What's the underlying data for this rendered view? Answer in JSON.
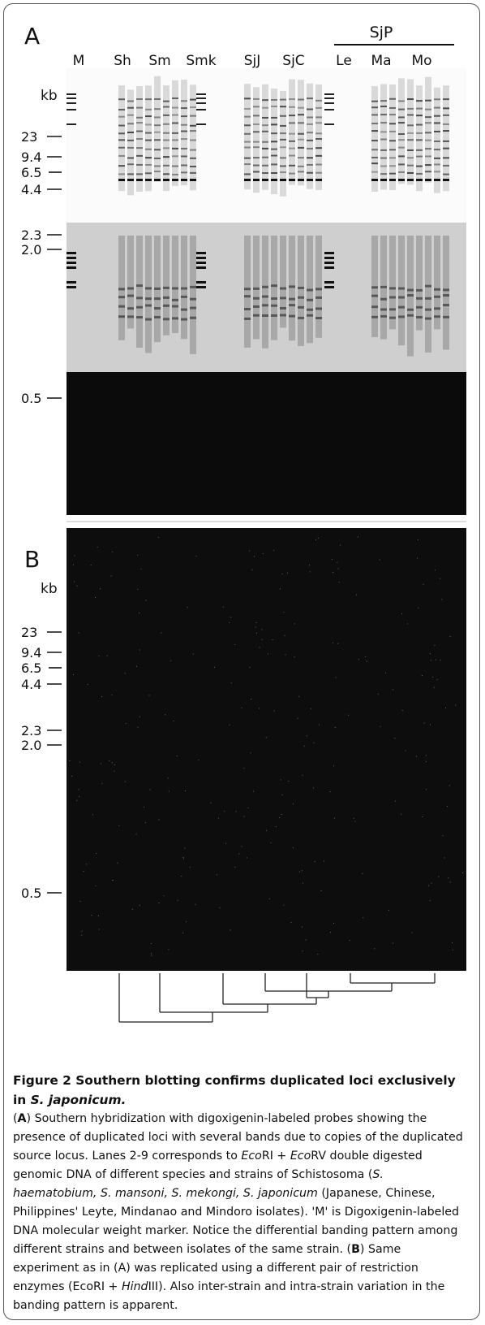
{
  "panel_a": {
    "label": "A",
    "group_label": "SjP",
    "lanes": [
      "M",
      "Sh",
      "Sm",
      "Smk",
      "SjJ",
      "SjC",
      "Le",
      "Ma",
      "Mo"
    ],
    "unit": "kb",
    "markers": [
      "23",
      "9.4",
      "6.5",
      "4.4",
      "2.3",
      "2.0",
      "0.5"
    ]
  },
  "panel_b": {
    "label": "B",
    "unit": "kb",
    "markers": [
      "23",
      "9.4",
      "6.5",
      "4.4",
      "2.3",
      "2.0",
      "0.5"
    ]
  },
  "caption": {
    "title": [
      {
        "text": "Figure 2 Southern blotting confirms duplicated loci exclusively in "
      },
      {
        "text": "S. japonicum.",
        "style": "italic"
      }
    ],
    "body": [
      {
        "text": " ("
      },
      {
        "text": "A",
        "style": "bold"
      },
      {
        "text": ") Southern hybridization with digoxigenin-labeled probes showing the presence of duplicated loci with several bands due to copies of the duplicated source locus. Lanes 2-9 corresponds to "
      },
      {
        "text": "Eco",
        "style": "italic"
      },
      {
        "text": "RI + "
      },
      {
        "text": "Eco",
        "style": "italic"
      },
      {
        "text": "RV double digested genomic DNA of different species and strains of Schistosoma ("
      },
      {
        "text": "S. haematobium, S. mansoni, S. mekongi, S. japonicum",
        "style": "italic"
      },
      {
        "text": " (Japanese, Chinese, Philippines' Leyte, Mindanao and Mindoro isolates). 'M' is Digoxigenin-labeled DNA molecular weight marker. Notice the differential banding pattern among different strains and between isolates of the same strain. ("
      },
      {
        "text": "B",
        "style": "bold"
      },
      {
        "text": ") Same experiment as in (A) was replicated using a different pair of restriction enzymes (EcoRI + "
      },
      {
        "text": "Hind",
        "style": "italic"
      },
      {
        "text": "III). Also inter-strain and intra-strain variation in the banding pattern is apparent."
      }
    ]
  }
}
